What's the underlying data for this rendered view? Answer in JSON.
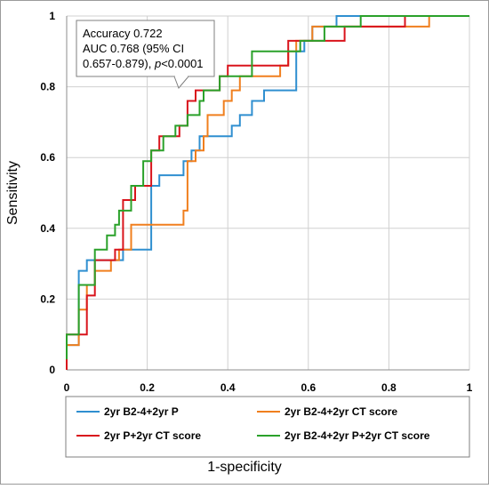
{
  "chart_data": {
    "type": "line",
    "title": "",
    "xlabel": "1-specificity",
    "ylabel": "Sensitivity",
    "xlim": [
      0,
      1
    ],
    "ylim": [
      0,
      1
    ],
    "xticks": [
      "0",
      "0.2",
      "0.4",
      "0.6",
      "0.8",
      "1"
    ],
    "yticks": [
      "0",
      "0.2",
      "0.4",
      "0.6",
      "0.8",
      "1"
    ],
    "grid": true,
    "annotation": {
      "line1": "Accuracy 0.722",
      "line2": "AUC 0.768 (95% CI",
      "line3_prefix": "0.657-0.879), ",
      "line3_italic": "p",
      "line3_suffix": "<0.0001"
    },
    "legend_position": "bottom",
    "series": [
      {
        "name": "2yr B2-4+2yr P",
        "color": "#2f8fd0",
        "points": [
          [
            0.0,
            0.0
          ],
          [
            0.0,
            0.07
          ],
          [
            0.03,
            0.07
          ],
          [
            0.03,
            0.28
          ],
          [
            0.05,
            0.28
          ],
          [
            0.05,
            0.31
          ],
          [
            0.07,
            0.31
          ],
          [
            0.07,
            0.31
          ],
          [
            0.11,
            0.31
          ],
          [
            0.11,
            0.31
          ],
          [
            0.14,
            0.31
          ],
          [
            0.14,
            0.34
          ],
          [
            0.21,
            0.34
          ],
          [
            0.21,
            0.52
          ],
          [
            0.23,
            0.52
          ],
          [
            0.23,
            0.55
          ],
          [
            0.29,
            0.55
          ],
          [
            0.29,
            0.59
          ],
          [
            0.31,
            0.59
          ],
          [
            0.31,
            0.62
          ],
          [
            0.33,
            0.62
          ],
          [
            0.33,
            0.66
          ],
          [
            0.41,
            0.66
          ],
          [
            0.41,
            0.69
          ],
          [
            0.43,
            0.69
          ],
          [
            0.43,
            0.72
          ],
          [
            0.46,
            0.72
          ],
          [
            0.46,
            0.76
          ],
          [
            0.49,
            0.76
          ],
          [
            0.49,
            0.79
          ],
          [
            0.57,
            0.79
          ],
          [
            0.57,
            0.9
          ],
          [
            0.59,
            0.9
          ],
          [
            0.59,
            0.93
          ],
          [
            0.61,
            0.93
          ],
          [
            0.61,
            0.97
          ],
          [
            0.67,
            0.97
          ],
          [
            0.67,
            1.0
          ],
          [
            1.0,
            1.0
          ]
        ]
      },
      {
        "name": "2yr B2-4+2yr CT score",
        "color": "#f07f1e",
        "points": [
          [
            0.0,
            0.0
          ],
          [
            0.0,
            0.07
          ],
          [
            0.03,
            0.07
          ],
          [
            0.03,
            0.17
          ],
          [
            0.05,
            0.17
          ],
          [
            0.05,
            0.24
          ],
          [
            0.07,
            0.24
          ],
          [
            0.07,
            0.28
          ],
          [
            0.11,
            0.28
          ],
          [
            0.11,
            0.31
          ],
          [
            0.13,
            0.31
          ],
          [
            0.13,
            0.34
          ],
          [
            0.16,
            0.34
          ],
          [
            0.16,
            0.41
          ],
          [
            0.29,
            0.41
          ],
          [
            0.29,
            0.45
          ],
          [
            0.3,
            0.45
          ],
          [
            0.3,
            0.59
          ],
          [
            0.32,
            0.59
          ],
          [
            0.32,
            0.62
          ],
          [
            0.34,
            0.62
          ],
          [
            0.34,
            0.66
          ],
          [
            0.35,
            0.66
          ],
          [
            0.35,
            0.72
          ],
          [
            0.39,
            0.72
          ],
          [
            0.39,
            0.76
          ],
          [
            0.41,
            0.76
          ],
          [
            0.41,
            0.79
          ],
          [
            0.43,
            0.79
          ],
          [
            0.43,
            0.83
          ],
          [
            0.53,
            0.83
          ],
          [
            0.53,
            0.86
          ],
          [
            0.55,
            0.86
          ],
          [
            0.55,
            0.9
          ],
          [
            0.57,
            0.9
          ],
          [
            0.57,
            0.93
          ],
          [
            0.61,
            0.93
          ],
          [
            0.61,
            0.97
          ],
          [
            0.9,
            0.97
          ],
          [
            0.9,
            1.0
          ],
          [
            1.0,
            1.0
          ]
        ]
      },
      {
        "name": "2yr P+2yr CT score",
        "color": "#d9141c",
        "points": [
          [
            0.0,
            0.0
          ],
          [
            0.0,
            0.1
          ],
          [
            0.05,
            0.1
          ],
          [
            0.05,
            0.21
          ],
          [
            0.07,
            0.21
          ],
          [
            0.07,
            0.31
          ],
          [
            0.12,
            0.31
          ],
          [
            0.12,
            0.34
          ],
          [
            0.14,
            0.34
          ],
          [
            0.14,
            0.48
          ],
          [
            0.17,
            0.48
          ],
          [
            0.17,
            0.52
          ],
          [
            0.21,
            0.52
          ],
          [
            0.21,
            0.62
          ],
          [
            0.23,
            0.62
          ],
          [
            0.23,
            0.66
          ],
          [
            0.28,
            0.66
          ],
          [
            0.28,
            0.69
          ],
          [
            0.3,
            0.69
          ],
          [
            0.3,
            0.76
          ],
          [
            0.32,
            0.76
          ],
          [
            0.32,
            0.79
          ],
          [
            0.38,
            0.79
          ],
          [
            0.38,
            0.83
          ],
          [
            0.4,
            0.83
          ],
          [
            0.4,
            0.86
          ],
          [
            0.55,
            0.86
          ],
          [
            0.55,
            0.93
          ],
          [
            0.69,
            0.93
          ],
          [
            0.69,
            0.97
          ],
          [
            0.84,
            0.97
          ],
          [
            0.84,
            1.0
          ],
          [
            1.0,
            1.0
          ]
        ]
      },
      {
        "name": "2yr B2-4+2yr P+2yr CT score",
        "color": "#2aa12a",
        "points": [
          [
            0.0,
            0.03
          ],
          [
            0.0,
            0.1
          ],
          [
            0.03,
            0.1
          ],
          [
            0.03,
            0.24
          ],
          [
            0.07,
            0.24
          ],
          [
            0.07,
            0.34
          ],
          [
            0.1,
            0.34
          ],
          [
            0.1,
            0.38
          ],
          [
            0.12,
            0.38
          ],
          [
            0.12,
            0.41
          ],
          [
            0.13,
            0.41
          ],
          [
            0.13,
            0.45
          ],
          [
            0.16,
            0.45
          ],
          [
            0.16,
            0.52
          ],
          [
            0.19,
            0.52
          ],
          [
            0.19,
            0.59
          ],
          [
            0.21,
            0.59
          ],
          [
            0.21,
            0.62
          ],
          [
            0.24,
            0.62
          ],
          [
            0.24,
            0.66
          ],
          [
            0.27,
            0.66
          ],
          [
            0.27,
            0.69
          ],
          [
            0.3,
            0.69
          ],
          [
            0.3,
            0.72
          ],
          [
            0.33,
            0.72
          ],
          [
            0.33,
            0.76
          ],
          [
            0.34,
            0.76
          ],
          [
            0.34,
            0.79
          ],
          [
            0.38,
            0.79
          ],
          [
            0.38,
            0.83
          ],
          [
            0.46,
            0.83
          ],
          [
            0.46,
            0.9
          ],
          [
            0.58,
            0.9
          ],
          [
            0.58,
            0.93
          ],
          [
            0.64,
            0.93
          ],
          [
            0.64,
            0.97
          ],
          [
            0.73,
            0.97
          ],
          [
            0.73,
            1.0
          ],
          [
            1.0,
            1.0
          ]
        ]
      }
    ]
  }
}
